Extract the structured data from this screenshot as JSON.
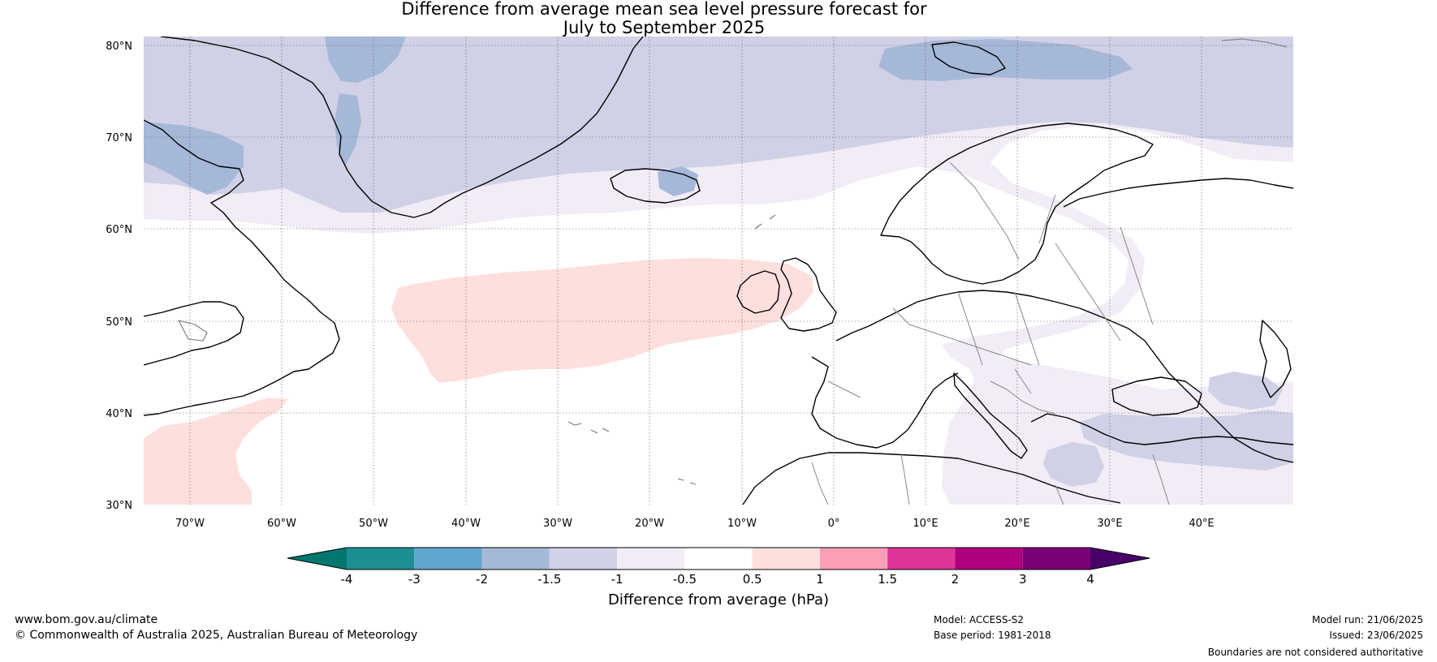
{
  "title": {
    "line1": "Difference from average mean sea level pressure forecast for",
    "line2": "July to September 2025"
  },
  "map": {
    "lat_labels": [
      "80°N",
      "70°N",
      "60°N",
      "50°N",
      "40°N",
      "30°N"
    ],
    "lon_labels": [
      "70°W",
      "60°W",
      "50°W",
      "40°W",
      "30°W",
      "20°W",
      "10°W",
      "0°",
      "10°E",
      "20°E",
      "30°E",
      "40°E"
    ],
    "extent": {
      "lon_min": -75,
      "lon_max": 50,
      "lat_min": 30,
      "lat_max": 81
    }
  },
  "colorbar": {
    "title": "Difference from average (hPa)",
    "labels": [
      "-4",
      "-3",
      "-2",
      "-1.5",
      "-1",
      "-0.5",
      "0.5",
      "1",
      "1.5",
      "2",
      "3",
      "4"
    ],
    "colors": [
      "#1b8f94",
      "#61a6cf",
      "#a6b8d8",
      "#d0d1e6",
      "#f1ecf5",
      "#ffffff",
      "#fde0dd",
      "#fa9fb5",
      "#dd3497",
      "#ae017e",
      "#7a0177"
    ],
    "under_color": "#02776f",
    "over_color": "#49006a"
  },
  "field_colors": {
    "band_-1.5_-1": "#d0d1e6",
    "band_-2_-1.5": "#a6b8d8",
    "band_-1_-0.5": "#f1ecf5",
    "band_0.5_1": "#fde0dd"
  },
  "footer": {
    "website": "www.bom.gov.au/climate",
    "copyright": "© Commonwealth of Australia 2025, Australian Bureau of Meteorology",
    "model": "Model: ACCESS-S2",
    "base_period": "Base period: 1981-2018",
    "model_run": "Model run: 21/06/2025",
    "issued": "Issued: 23/06/2025",
    "disclaimer": "Boundaries are not considered authoritative"
  }
}
